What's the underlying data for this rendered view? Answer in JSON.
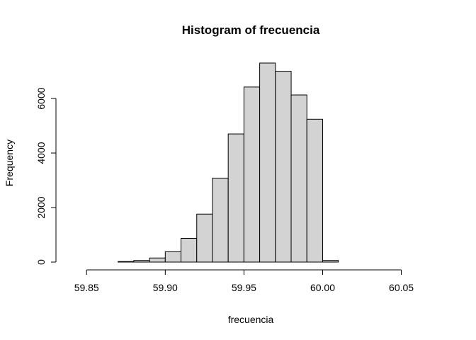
{
  "chart_data": {
    "type": "bar",
    "title": "Histogram of frecuencia",
    "xlabel": "frecuencia",
    "ylabel": "Frequency",
    "bar_color": "#D3D3D3",
    "border_color": "#000000",
    "bin_edges": [
      59.85,
      59.86,
      59.87,
      59.88,
      59.89,
      59.9,
      59.91,
      59.92,
      59.93,
      59.94,
      59.95,
      59.96,
      59.97,
      59.98,
      59.99,
      60.0,
      60.01,
      60.02,
      60.03,
      60.04,
      60.05,
      60.06,
      60.07
    ],
    "values": [
      0,
      0,
      20,
      60,
      150,
      380,
      870,
      1760,
      3080,
      4700,
      6420,
      7300,
      7000,
      6130,
      5240,
      60,
      0,
      0,
      0,
      0,
      0,
      0
    ],
    "xlim": [
      59.84,
      60.07
    ],
    "ylim": [
      0,
      7300
    ],
    "x_ticks": [
      59.85,
      59.9,
      59.95,
      60.0,
      60.05
    ],
    "x_tick_labels": [
      "59.85",
      "59.90",
      "59.95",
      "60.00",
      "60.05"
    ],
    "y_ticks": [
      0,
      2000,
      4000,
      6000
    ],
    "y_tick_labels": [
      "0",
      "2000",
      "4000",
      "6000"
    ],
    "grid": false
  }
}
